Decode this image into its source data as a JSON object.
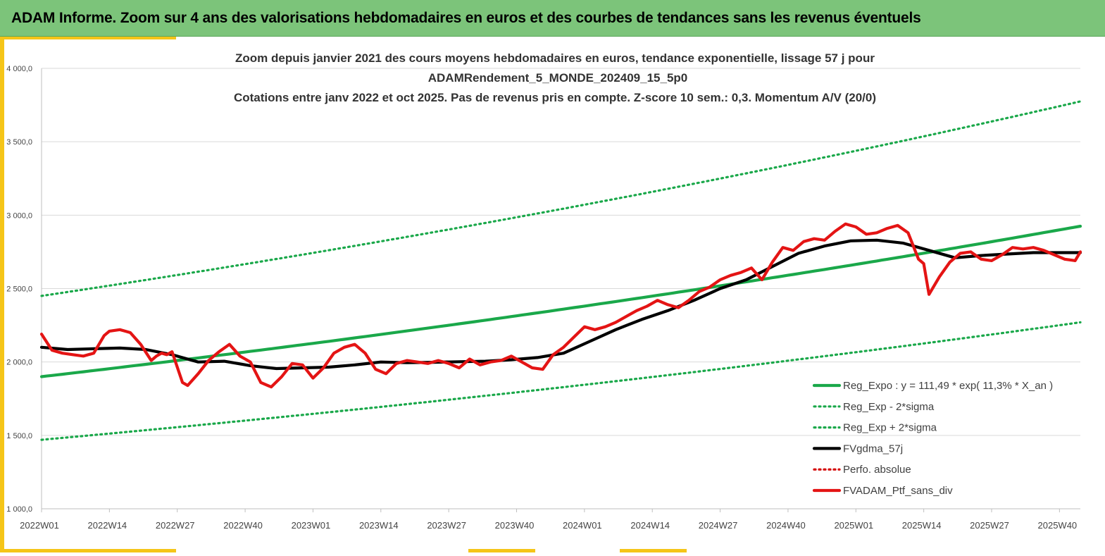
{
  "header": {
    "title": "ADAM Informe. Zoom sur 4 ans des valorisations hebdomadaires en euros et des courbes de tendances sans les revenus éventuels"
  },
  "colors": {
    "header_bg": "#7cc47a",
    "accent": "#f5c518",
    "trend": "#1aa84a",
    "sigma": "#1aa84a",
    "smooth": "#000000",
    "perf": "#d40000",
    "price": "#e41414"
  },
  "chart_data": {
    "type": "line",
    "title": [
      "Zoom depuis janvier 2021 des cours moyens hebdomadaires  en euros, tendance exponentielle, lissage 57 j pour",
      "ADAMRendement_5_MONDE_202409_15_5p0",
      "Cotations  entre janv 2022 et oct 2025. Pas de revenus pris en compte. Z-score 10 sem.: 0,3. Momentum A/V (20/0)"
    ],
    "xlabel": "",
    "ylabel": "",
    "ylim": [
      1000,
      4000
    ],
    "grid": true,
    "legend_position": "bottom-right",
    "y_ticks": [
      "1 000,0",
      "1 500,0",
      "2 000,0",
      "2 500,0",
      "3 000,0",
      "3 500,0",
      "4 000,0"
    ],
    "y_tick_values": [
      1000,
      1500,
      2000,
      2500,
      3000,
      3500,
      4000
    ],
    "x_ticks": [
      "2022W01",
      "2022W14",
      "2022W27",
      "2022W40",
      "2023W01",
      "2023W14",
      "2023W27",
      "2023W40",
      "2024W01",
      "2024W14",
      "2024W27",
      "2024W40",
      "2025W01",
      "2025W14",
      "2025W27",
      "2025W40"
    ],
    "x_tick_index": [
      0,
      13,
      26,
      39,
      52,
      65,
      78,
      91,
      104,
      117,
      130,
      143,
      156,
      169,
      182,
      195
    ],
    "x_max_index": 199,
    "series": [
      {
        "name": "Reg_Expo : y = 111,49 * exp( 11,3% *  X_an )",
        "style": "solid-thick",
        "color": "#1aa84a",
        "kind": "exponential",
        "start_value": 1900,
        "end_value": 2925
      },
      {
        "name": "Reg_Exp - 2*sigma",
        "style": "dotted",
        "color": "#1aa84a",
        "kind": "exponential",
        "start_value": 1470,
        "end_value": 2270
      },
      {
        "name": "Reg_Exp + 2*sigma",
        "style": "dotted",
        "color": "#1aa84a",
        "kind": "exponential",
        "start_value": 2450,
        "end_value": 3775
      },
      {
        "name": "FVgdma_57j",
        "style": "solid-thick",
        "color": "#000000",
        "kind": "points",
        "x": [
          0,
          5,
          10,
          15,
          20,
          25,
          30,
          35,
          40,
          45,
          50,
          55,
          60,
          65,
          70,
          75,
          80,
          85,
          90,
          95,
          100,
          105,
          110,
          115,
          120,
          125,
          130,
          135,
          140,
          145,
          150,
          155,
          160,
          165,
          170,
          175,
          180,
          185,
          190,
          195,
          199
        ],
        "values": [
          2100,
          2085,
          2090,
          2095,
          2085,
          2050,
          2000,
          2005,
          1975,
          1955,
          1960,
          1965,
          1980,
          2000,
          1995,
          1998,
          2002,
          2005,
          2015,
          2030,
          2060,
          2140,
          2220,
          2290,
          2350,
          2420,
          2500,
          2560,
          2650,
          2740,
          2790,
          2825,
          2830,
          2810,
          2760,
          2710,
          2725,
          2735,
          2745,
          2745,
          2745
        ]
      },
      {
        "name": "Perfo. absolue",
        "style": "dotted",
        "color": "#d40000",
        "kind": "none"
      },
      {
        "name": "FVADAM_Ptf_sans_div",
        "style": "solid-thick",
        "color": "#e41414",
        "kind": "points",
        "x": [
          0,
          2,
          4,
          6,
          8,
          10,
          12,
          13,
          15,
          16,
          17,
          19,
          21,
          22,
          23,
          24,
          25,
          27,
          28,
          30,
          32,
          34,
          36,
          38,
          40,
          42,
          44,
          46,
          48,
          50,
          52,
          54,
          56,
          58,
          60,
          62,
          64,
          66,
          68,
          70,
          72,
          74,
          76,
          78,
          80,
          82,
          84,
          86,
          88,
          90,
          92,
          94,
          96,
          98,
          100,
          102,
          104,
          106,
          108,
          110,
          112,
          114,
          116,
          118,
          120,
          122,
          124,
          126,
          128,
          130,
          132,
          134,
          136,
          138,
          140,
          142,
          144,
          146,
          148,
          150,
          152,
          154,
          156,
          158,
          160,
          162,
          164,
          166,
          168,
          169,
          170,
          172,
          174,
          176,
          178,
          180,
          182,
          184,
          186,
          188,
          190,
          192,
          194,
          196,
          198,
          199
        ],
        "values": [
          2190,
          2080,
          2060,
          2050,
          2040,
          2060,
          2180,
          2210,
          2220,
          2210,
          2200,
          2120,
          2010,
          2040,
          2060,
          2050,
          2070,
          1860,
          1840,
          1920,
          2010,
          2070,
          2120,
          2040,
          2000,
          1860,
          1830,
          1900,
          1990,
          1980,
          1890,
          1960,
          2060,
          2100,
          2120,
          2060,
          1950,
          1920,
          1990,
          2010,
          2000,
          1990,
          2010,
          1990,
          1960,
          2020,
          1980,
          2000,
          2010,
          2040,
          2000,
          1960,
          1950,
          2050,
          2100,
          2170,
          2240,
          2220,
          2240,
          2270,
          2310,
          2350,
          2380,
          2420,
          2390,
          2370,
          2420,
          2480,
          2510,
          2560,
          2590,
          2610,
          2640,
          2560,
          2680,
          2780,
          2760,
          2820,
          2840,
          2830,
          2890,
          2940,
          2920,
          2870,
          2880,
          2910,
          2930,
          2880,
          2700,
          2670,
          2460,
          2580,
          2680,
          2740,
          2750,
          2700,
          2690,
          2730,
          2780,
          2770,
          2780,
          2760,
          2730,
          2700,
          2690,
          2750
        ]
      }
    ]
  }
}
